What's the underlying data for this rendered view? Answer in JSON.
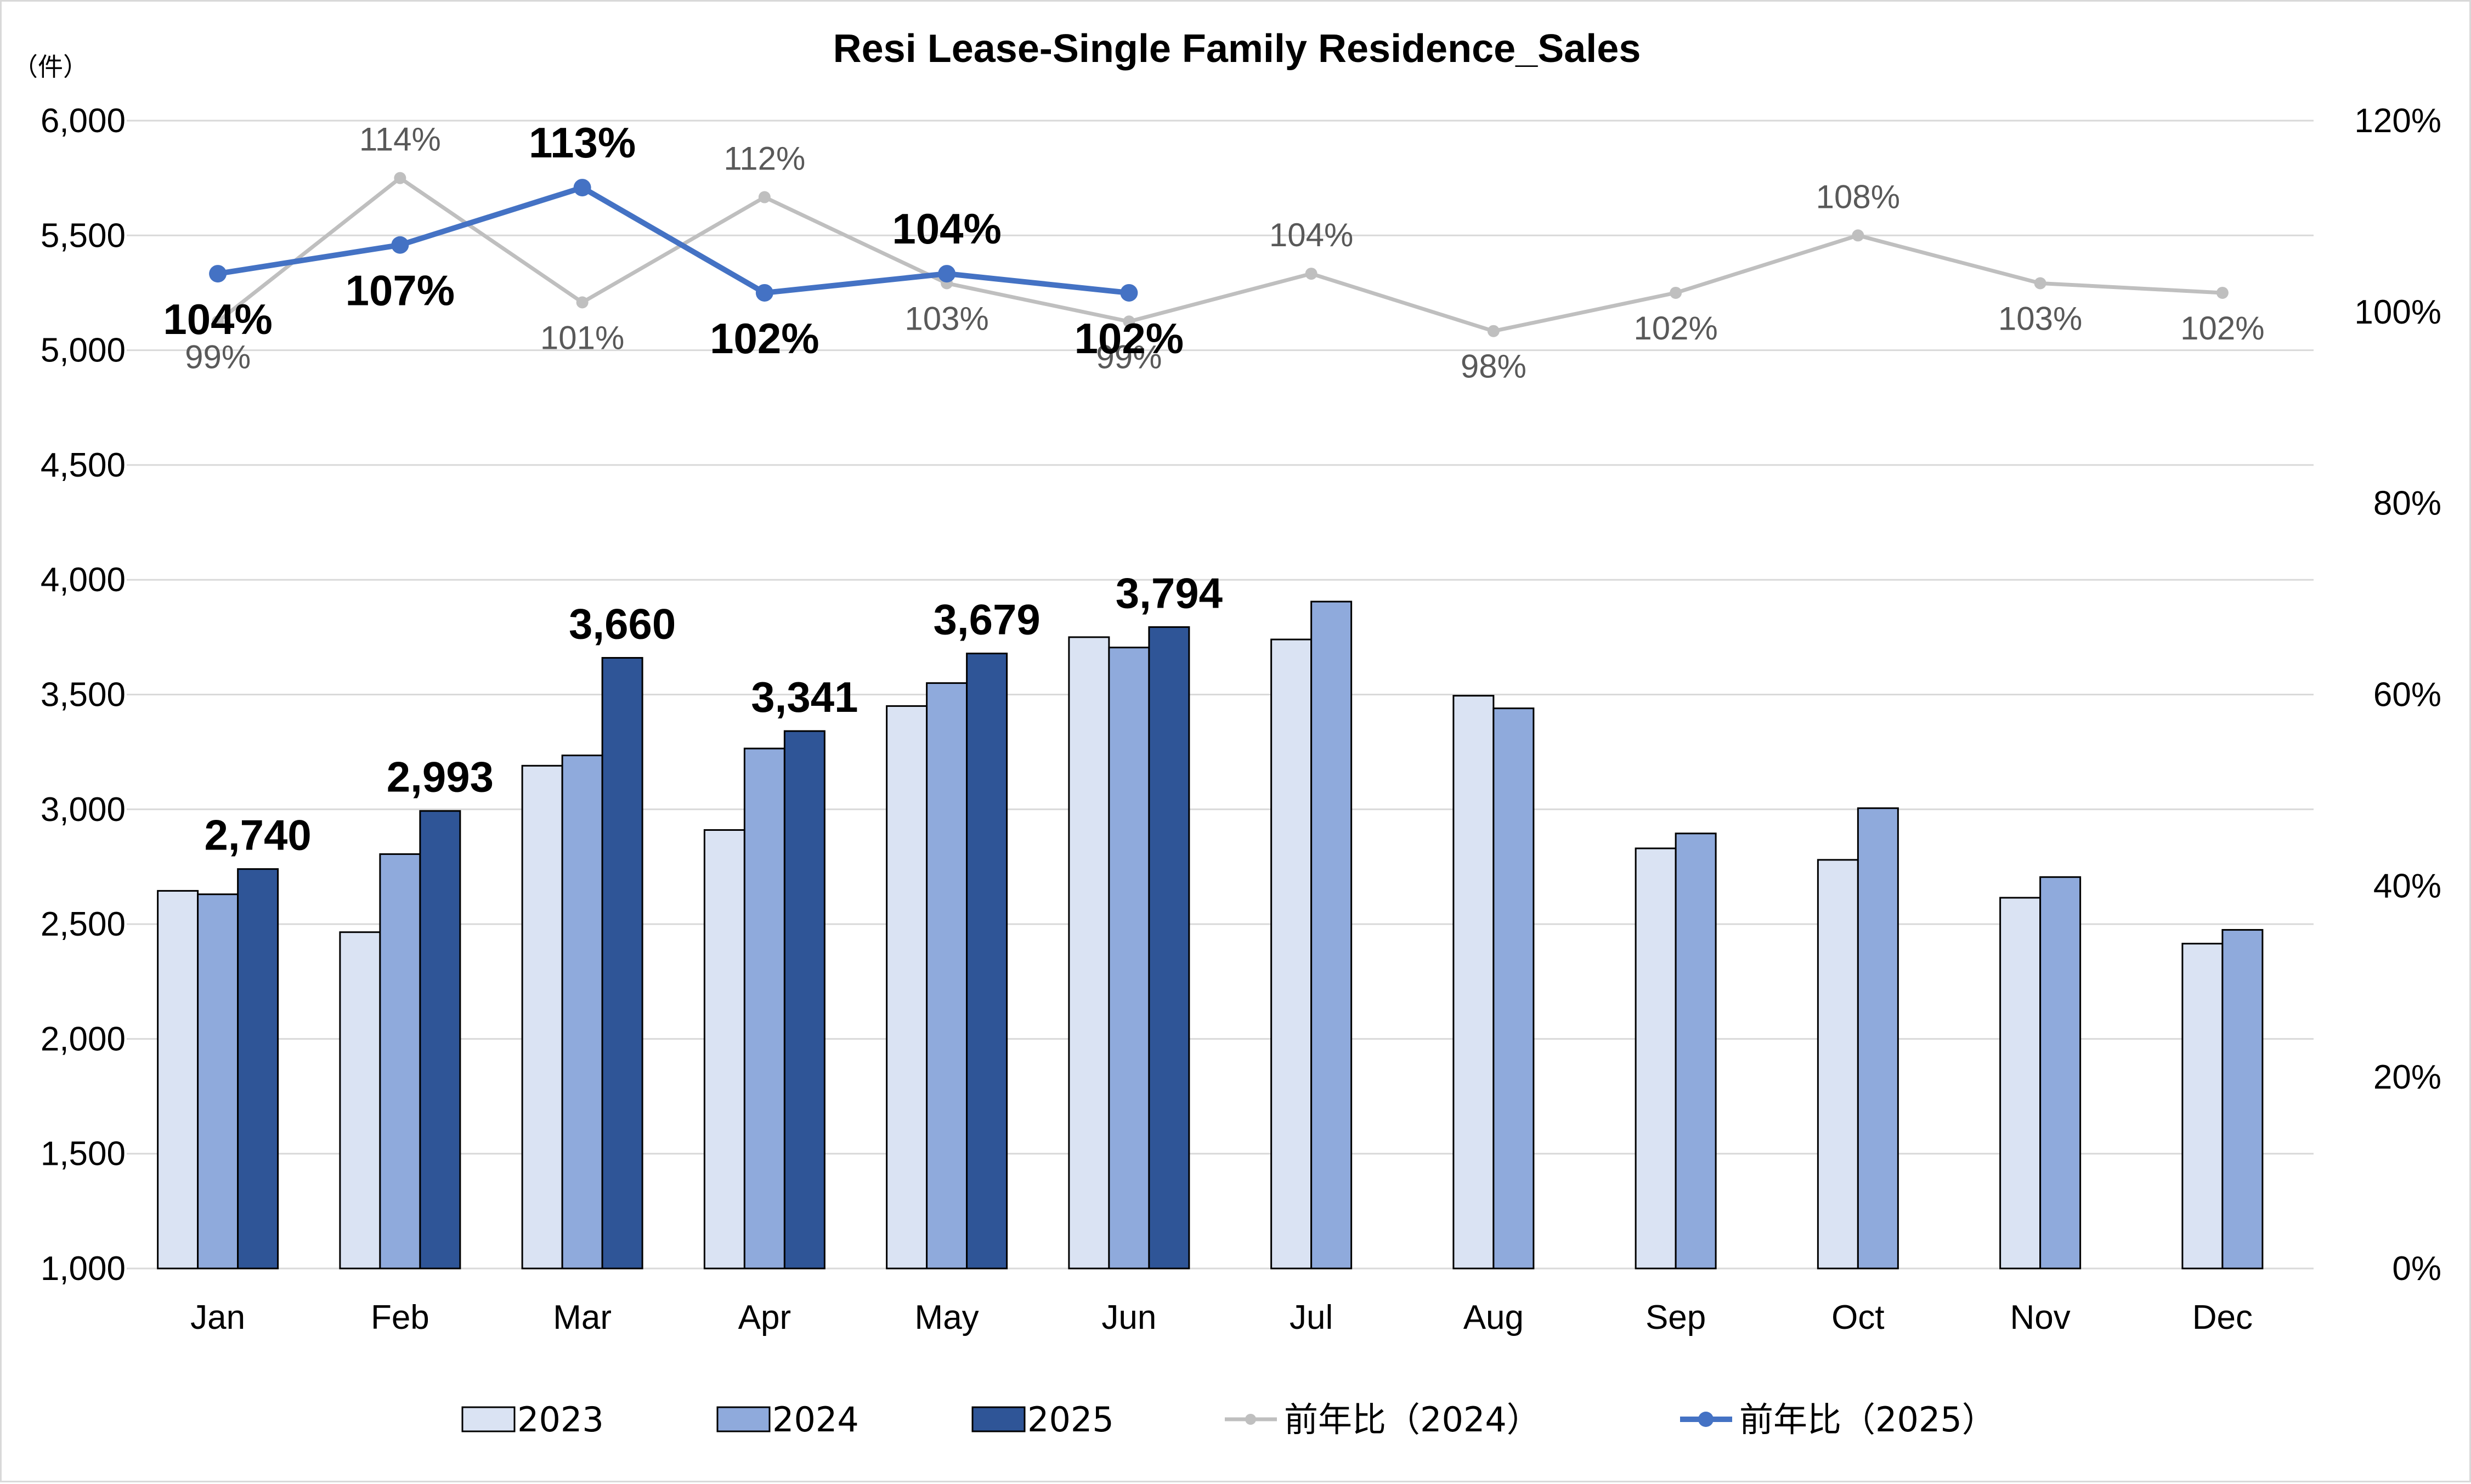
{
  "chart_data": {
    "type": "bar",
    "title": "Resi Lease-Single Family Residence_Sales",
    "unit_label": "（件）",
    "categories": [
      "Jan",
      "Feb",
      "Mar",
      "Apr",
      "May",
      "Jun",
      "Jul",
      "Aug",
      "Sep",
      "Oct",
      "Nov",
      "Dec"
    ],
    "ylim": [
      1000,
      6000
    ],
    "yticks": [
      "1,000",
      "1,500",
      "2,000",
      "2,500",
      "3,000",
      "3,500",
      "4,000",
      "4,500",
      "5,000",
      "5,500",
      "6,000"
    ],
    "y2lim": [
      0,
      120
    ],
    "y2ticks": [
      "0%",
      "20%",
      "40%",
      "60%",
      "80%",
      "100%",
      "120%"
    ],
    "grid": true,
    "legend_position": "bottom",
    "series": [
      {
        "name": "2023",
        "kind": "bar",
        "color": "#dae3f3",
        "values": [
          2645,
          2465,
          3190,
          2910,
          3450,
          3750,
          3740,
          3495,
          2830,
          2780,
          2615,
          2415
        ]
      },
      {
        "name": "2024",
        "kind": "bar",
        "color": "#8faadc",
        "values": [
          2630,
          2805,
          3235,
          3265,
          3550,
          3705,
          3905,
          3440,
          2895,
          3005,
          2705,
          2475
        ]
      },
      {
        "name": "2025",
        "kind": "bar",
        "color": "#2f5597",
        "values": [
          2740,
          2993,
          3660,
          3341,
          3679,
          3794,
          null,
          null,
          null,
          null,
          null,
          null
        ],
        "labels": [
          "2,740",
          "2,993",
          "3,660",
          "3,341",
          "3,679",
          "3,794",
          "",
          "",
          "",
          "",
          "",
          ""
        ]
      },
      {
        "name": "前年比（2024）",
        "kind": "line",
        "axis": "secondary",
        "color": "#bfbfbf",
        "values": [
          99,
          114,
          101,
          112,
          103,
          99,
          104,
          98,
          102,
          108,
          103,
          102
        ],
        "labels": [
          "99%",
          "114%",
          "101%",
          "112%",
          "103%",
          "99%",
          "104%",
          "98%",
          "102%",
          "108%",
          "103%",
          "102%"
        ]
      },
      {
        "name": "前年比（2025）",
        "kind": "line",
        "axis": "secondary",
        "color": "#4472c4",
        "values": [
          104,
          107,
          113,
          102,
          104,
          102,
          null,
          null,
          null,
          null,
          null,
          null
        ],
        "labels": [
          "104%",
          "107%",
          "113%",
          "102%",
          "104%",
          "102%",
          "",
          "",
          "",
          "",
          "",
          ""
        ]
      }
    ]
  }
}
